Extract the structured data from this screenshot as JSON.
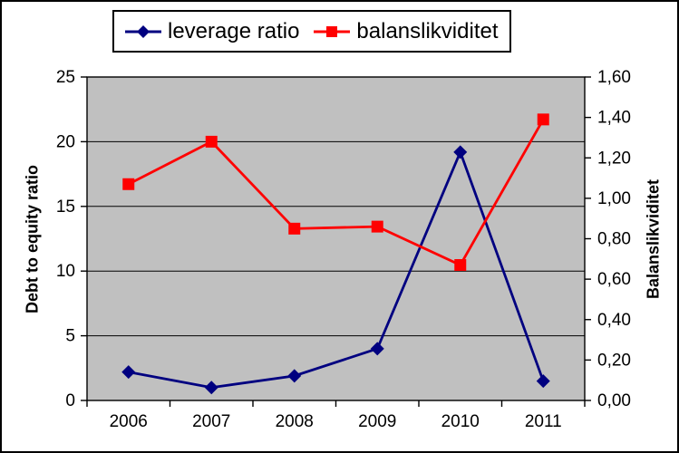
{
  "chart_data": {
    "type": "line",
    "title": "",
    "categories": [
      "2006",
      "2007",
      "2008",
      "2009",
      "2010",
      "2011"
    ],
    "series": [
      {
        "name": "leverage ratio",
        "axis": "left",
        "color": "#000080",
        "marker": "diamond",
        "values": [
          2.2,
          1.0,
          1.9,
          4.0,
          19.2,
          1.5
        ]
      },
      {
        "name": "balanslikviditet",
        "axis": "right",
        "color": "#FF0000",
        "marker": "square",
        "values": [
          1.07,
          1.28,
          0.85,
          0.86,
          0.67,
          1.39
        ]
      }
    ],
    "left_axis": {
      "label": "Debt to equity ratio",
      "min": 0,
      "max": 25,
      "step": 5,
      "tick_labels": [
        "0",
        "5",
        "10",
        "15",
        "20",
        "25"
      ]
    },
    "right_axis": {
      "label": "Balanslikviditet",
      "min": 0,
      "max": 1.6,
      "step": 0.2,
      "tick_labels": [
        "0,00",
        "0,20",
        "0,40",
        "0,60",
        "0,80",
        "1,00",
        "1,20",
        "1,40",
        "1,60"
      ]
    },
    "x_axis": {
      "labels": [
        "2006",
        "2007",
        "2008",
        "2009",
        "2010",
        "2011"
      ]
    },
    "legend": {
      "position": "top",
      "entries": [
        "leverage ratio",
        "balanslikviditet"
      ]
    },
    "colors": {
      "chart_background": "#FFFFFF",
      "plot_background": "#C0C0C0",
      "grid": "#000000",
      "axis": "#000000",
      "border": "#000000"
    },
    "grid": "horizontal"
  }
}
